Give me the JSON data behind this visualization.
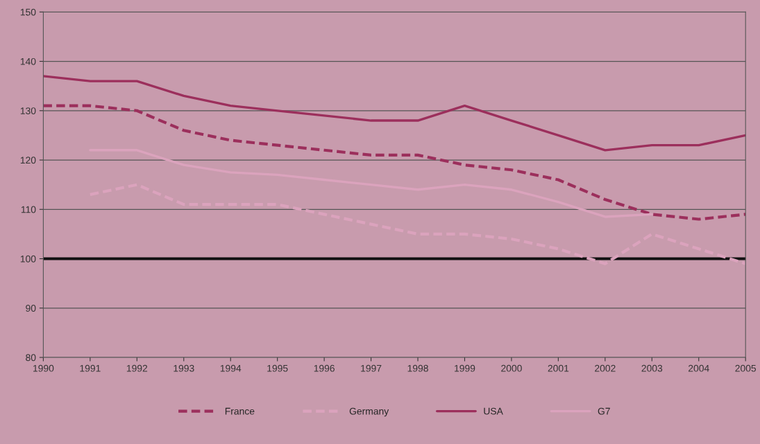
{
  "chart_data": {
    "type": "line",
    "x": [
      1990,
      1991,
      1992,
      1993,
      1994,
      1995,
      1996,
      1997,
      1998,
      1999,
      2000,
      2001,
      2002,
      2003,
      2004,
      2005
    ],
    "series": [
      {
        "name": "France",
        "color": "#9c2f5c",
        "line_style": "dashed",
        "values": [
          131,
          131,
          130,
          126,
          124,
          123,
          122,
          121,
          121,
          119,
          118,
          116,
          112,
          109,
          108,
          109
        ]
      },
      {
        "name": "Germany",
        "color": "#dba3bd",
        "line_style": "dashed",
        "values": [
          null,
          113,
          115,
          111,
          111,
          111,
          109,
          107,
          105,
          105,
          104,
          102,
          99,
          105,
          102,
          99
        ]
      },
      {
        "name": "USA",
        "color": "#9c2f5c",
        "line_style": "solid",
        "values": [
          137,
          136,
          136,
          133,
          131,
          130,
          129,
          128,
          128,
          131,
          128,
          125,
          122,
          123,
          123,
          125
        ]
      },
      {
        "name": "G7",
        "color": "#dba3bd",
        "line_style": "solid",
        "values": [
          null,
          122,
          122,
          119,
          117.5,
          117,
          116,
          115,
          114,
          115,
          114,
          111.5,
          108.5,
          109,
          null,
          null
        ]
      }
    ],
    "xlim": [
      1990,
      2005
    ],
    "xticks": [
      1990,
      1991,
      1992,
      1993,
      1994,
      1995,
      1996,
      1997,
      1998,
      1999,
      2000,
      2001,
      2002,
      2003,
      2004,
      2005
    ],
    "ylim": [
      80,
      150
    ],
    "yticks": [
      80,
      90,
      100,
      110,
      120,
      130,
      140,
      150
    ],
    "ref_lines": [
      {
        "axis": "y",
        "value": 100,
        "color": "#111111",
        "line_style": "solid"
      }
    ],
    "grid": "y",
    "legend": "bottom",
    "marker": "none"
  }
}
